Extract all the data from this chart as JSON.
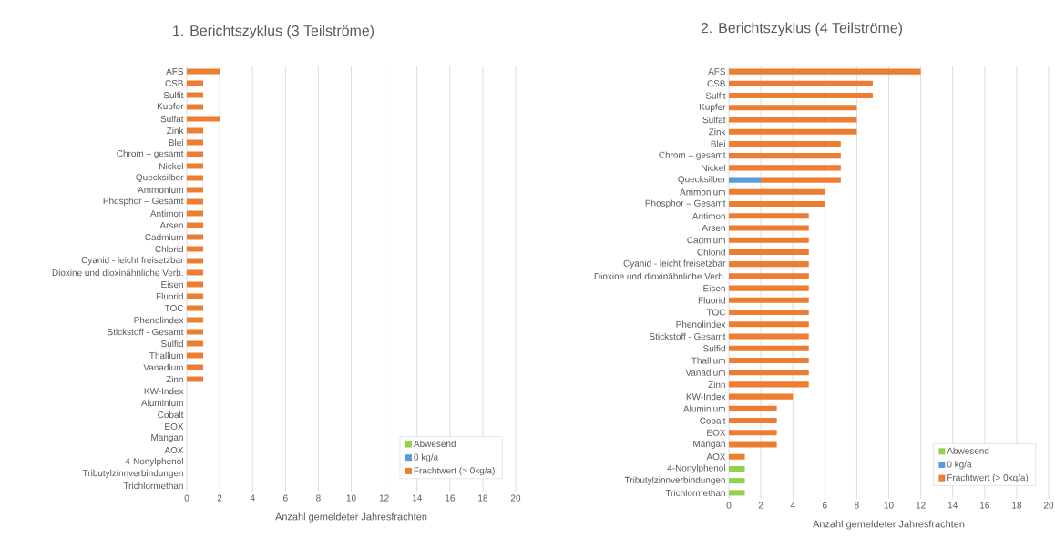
{
  "chart_data": [
    {
      "type": "bar",
      "orientation": "horizontal",
      "stacked": true,
      "title": "1. Berichtszyklus (3 Teilströme)",
      "xlabel": "Anzahl gemeldeter Jahresfrachten",
      "categories": [
        "AFS",
        "CSB",
        "Sulfit",
        "Kupfer",
        "Sulfat",
        "Zink",
        "Blei",
        "Chrom – gesamt",
        "Nickel",
        "Quecksilber",
        "Ammonium",
        "Phosphor – Gesamt",
        "Antimon",
        "Arsen",
        "Cadmium",
        "Chlorid",
        "Cyanid - leicht freisetzbar",
        "Dioxine und dioxinähnliche Verb.",
        "Eisen",
        "Fluorid",
        "TOC",
        "Phenolindex",
        "Stickstoff - Gesamt",
        "Sulfid",
        "Thallium",
        "Vanadium",
        "Zinn",
        "KW-Index",
        "Aluminium",
        "Cobalt",
        "EOX",
        "Mangan",
        "AOX",
        "4-Nonylphenol",
        "Tributylzinnverbindungen",
        "Trichlormethan"
      ],
      "series": [
        {
          "name": "Abwesend",
          "color": "#92d050",
          "values": [
            null,
            null,
            null,
            null,
            null,
            null,
            null,
            null,
            null,
            null,
            null,
            null,
            null,
            null,
            null,
            null,
            null,
            null,
            null,
            null,
            null,
            null,
            null,
            null,
            null,
            null,
            null,
            null,
            null,
            null,
            null,
            null,
            null,
            null,
            null,
            null
          ]
        },
        {
          "name": "0 kg/a",
          "color": "#5b9bd5",
          "values": [
            null,
            null,
            null,
            null,
            null,
            null,
            null,
            null,
            null,
            null,
            null,
            null,
            null,
            null,
            null,
            null,
            null,
            null,
            null,
            null,
            null,
            null,
            null,
            null,
            null,
            null,
            null,
            null,
            null,
            null,
            null,
            null,
            null,
            null,
            null,
            null
          ]
        },
        {
          "name": "Frachtwert (> 0kg/a)",
          "color": "#ed7d31",
          "values": [
            2,
            1,
            1,
            1,
            2,
            1,
            1,
            1,
            1,
            1,
            1,
            1,
            1,
            1,
            1,
            1,
            1,
            1,
            1,
            1,
            1,
            1,
            1,
            1,
            1,
            1,
            1,
            null,
            null,
            null,
            null,
            null,
            null,
            null,
            null,
            null
          ]
        }
      ],
      "xlim": [
        0,
        20
      ],
      "xticks": [
        0,
        2,
        4,
        6,
        8,
        10,
        12,
        14,
        16,
        18,
        20
      ],
      "grid": "x",
      "legend": "bottom right"
    },
    {
      "type": "bar",
      "orientation": "horizontal",
      "stacked": true,
      "title": "2. Berichtszyklus (4 Teilströme)",
      "xlabel": "Anzahl gemeldeter Jahresfrachten",
      "categories": [
        "AFS",
        "CSB",
        "Sulfit",
        "Kupfer",
        "Sulfat",
        "Zink",
        "Blei",
        "Chrom – gesamt",
        "Nickel",
        "Quecksilber",
        "Ammonium",
        "Phosphor – Gesamt",
        "Antimon",
        "Arsen",
        "Cadmium",
        "Chlorid",
        "Cyanid - leicht freisetzbar",
        "Dioxine und dioxinähnliche Verb.",
        "Eisen",
        "Fluorid",
        "TOC",
        "Phenolindex",
        "Stickstoff - Gesamt",
        "Sulfid",
        "Thallium",
        "Vanadium",
        "Zinn",
        "KW-Index",
        "Aluminium",
        "Cobalt",
        "EOX",
        "Mangan",
        "AOX",
        "4-Nonylphenol",
        "Tributylzinnverbindungen",
        "Trichlormethan"
      ],
      "series": [
        {
          "name": "Abwesend",
          "color": "#92d050",
          "values": [
            null,
            null,
            null,
            null,
            null,
            null,
            null,
            null,
            null,
            null,
            null,
            null,
            null,
            null,
            null,
            null,
            null,
            null,
            null,
            null,
            null,
            null,
            null,
            null,
            null,
            null,
            null,
            null,
            null,
            null,
            null,
            null,
            null,
            1,
            1,
            1
          ]
        },
        {
          "name": "0 kg/a",
          "color": "#5b9bd5",
          "values": [
            null,
            null,
            null,
            null,
            null,
            null,
            null,
            null,
            null,
            2,
            null,
            null,
            null,
            null,
            null,
            null,
            null,
            null,
            null,
            null,
            null,
            null,
            null,
            null,
            null,
            null,
            null,
            null,
            null,
            null,
            null,
            null,
            null,
            null,
            null,
            null
          ]
        },
        {
          "name": "Frachtwert (> 0kg/a)",
          "color": "#ed7d31",
          "values": [
            12,
            9,
            9,
            8,
            8,
            8,
            7,
            7,
            7,
            5,
            6,
            6,
            5,
            5,
            5,
            5,
            5,
            5,
            5,
            5,
            5,
            5,
            5,
            5,
            5,
            5,
            5,
            4,
            3,
            3,
            3,
            3,
            1,
            null,
            null,
            null
          ]
        }
      ],
      "xlim": [
        0,
        20
      ],
      "xticks": [
        0,
        2,
        4,
        6,
        8,
        10,
        12,
        14,
        16,
        18,
        20
      ],
      "grid": "x",
      "legend": "bottom right"
    }
  ]
}
